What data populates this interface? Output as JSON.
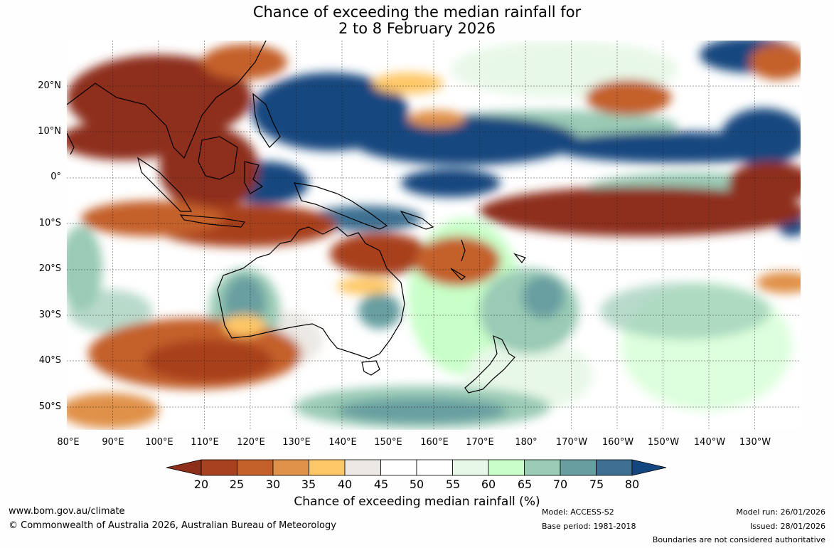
{
  "title_line1": "Chance of exceeding the median rainfall for",
  "title_line2": "2 to 8 February 2026",
  "map": {
    "extent": {
      "lon_min": 80,
      "lon_max": 240,
      "lat_min": -55,
      "lat_max": 30
    },
    "lat_labels": [
      "20°N",
      "10°N",
      "0°",
      "10°S",
      "20°S",
      "30°S",
      "40°S",
      "50°S"
    ],
    "lon_labels": [
      "80°E",
      "90°E",
      "100°E",
      "110°E",
      "120°E",
      "130°E",
      "140°E",
      "150°E",
      "160°E",
      "170°E",
      "180°",
      "170°W",
      "160°W",
      "150°W",
      "140°W",
      "130°W"
    ]
  },
  "colorbar": {
    "title": "Chance of exceeding median rainfall (%)",
    "ticks": [
      "20",
      "25",
      "30",
      "35",
      "40",
      "45",
      "50",
      "55",
      "60",
      "65",
      "70",
      "75",
      "80"
    ],
    "colors": [
      "#8e2f1b",
      "#a8411f",
      "#c4612a",
      "#e0914a",
      "#fec766",
      "#ece9e4",
      "#ffffff",
      "#ffffff",
      "#e8f8e8",
      "#c8ffc8",
      "#9acbb5",
      "#679fa0",
      "#3d7092",
      "#14477f"
    ]
  },
  "footer": {
    "website": "www.bom.gov.au/climate",
    "copyright": "© Commonwealth of Australia 2026, Australian Bureau of Meteorology",
    "model": "Model: ACCESS-S2",
    "base_period": "Base period: 1981-2018",
    "model_run": "Model run: 26/01/2026",
    "issued": "Issued: 28/01/2026",
    "disclaimer": "Boundaries are not considered authoritative"
  }
}
